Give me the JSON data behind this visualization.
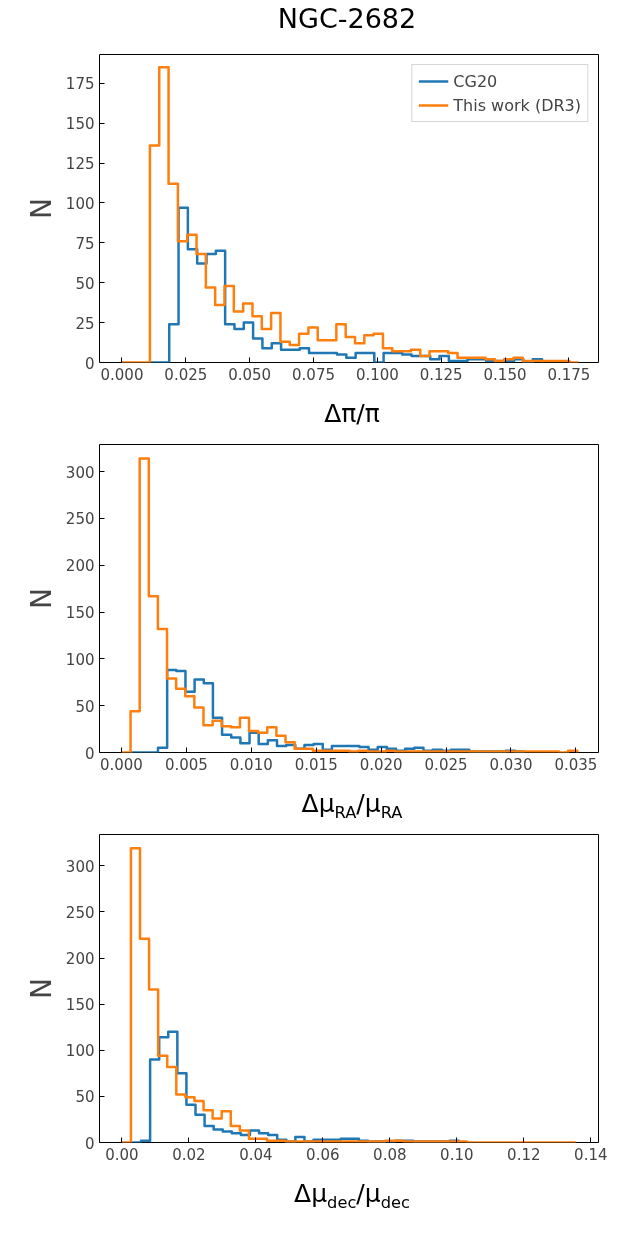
{
  "chart_data": [
    {
      "type": "step",
      "title": "NGC-2682",
      "xlabel": "Δπ/π",
      "ylabel": "N",
      "legend": "top right",
      "grid": false,
      "marker": "none",
      "xlim": [
        -0.0088,
        0.1866
      ],
      "ylim": [
        0,
        193
      ],
      "xticks": [
        {
          "value": 0,
          "label": "0.000"
        },
        {
          "value": 0.025,
          "label": "0.025"
        },
        {
          "value": 0.05,
          "label": "0.050"
        },
        {
          "value": 0.075,
          "label": "0.075"
        },
        {
          "value": 0.1,
          "label": "0.100"
        },
        {
          "value": 0.125,
          "label": "0.125"
        },
        {
          "value": 0.15,
          "label": "0.150"
        },
        {
          "value": 0.175,
          "label": "0.175"
        }
      ],
      "yticks": [
        0,
        25,
        50,
        75,
        100,
        125,
        150,
        175
      ],
      "series": [
        {
          "name": "CG20",
          "color": "#1f77b4",
          "x": [
            0.0112,
            0.01485,
            0.0185,
            0.02215,
            0.0258,
            0.02945,
            0.0331,
            0.03675,
            0.0404,
            0.04405,
            0.0477,
            0.05135,
            0.055,
            0.05865,
            0.0623,
            0.06595,
            0.0696,
            0.07325,
            0.0769,
            0.08055,
            0.0842,
            0.08785,
            0.0915,
            0.09515,
            0.0988,
            0.10245,
            0.1061,
            0.10975,
            0.1134,
            0.11705,
            0.1207,
            0.12435,
            0.128,
            0.13165,
            0.1353,
            0.13895,
            0.1426,
            0.14625,
            0.1499,
            0.15355,
            0.1572,
            0.16085,
            0.1645
          ],
          "values": [
            0,
            0,
            24,
            97,
            71,
            62,
            68,
            70,
            24,
            21,
            25,
            15,
            9,
            12,
            8,
            8,
            9,
            6,
            6,
            6,
            5,
            3,
            6,
            6,
            0,
            6,
            6,
            5,
            4,
            4,
            2,
            4,
            1,
            1,
            2,
            2,
            1,
            1,
            1,
            2,
            0,
            2,
            0
          ]
        },
        {
          "name": "This work (DR3)",
          "color": "#ff7f0e",
          "x": [
            0,
            0.00365,
            0.0073,
            0.01095,
            0.0146,
            0.01825,
            0.0219,
            0.02555,
            0.0292,
            0.03285,
            0.0365,
            0.04015,
            0.0438,
            0.04745,
            0.0511,
            0.05475,
            0.0584,
            0.06205,
            0.0657,
            0.06935,
            0.073,
            0.07665,
            0.0803,
            0.08395,
            0.0876,
            0.09125,
            0.0949,
            0.09855,
            0.1022,
            0.10585,
            0.1095,
            0.11315,
            0.1168,
            0.12045,
            0.1241,
            0.12775,
            0.1314,
            0.13505,
            0.1387,
            0.14235,
            0.146,
            0.14965,
            0.1533,
            0.15695,
            0.1606,
            0.16425,
            0.1679,
            0.17155,
            0.1752,
            0.17885
          ],
          "values": [
            0,
            0,
            0,
            136,
            185,
            112,
            76,
            80,
            68,
            47,
            36,
            48,
            32,
            37,
            29,
            21,
            31,
            13,
            11,
            18,
            22,
            14,
            14,
            24,
            16,
            12,
            17,
            18,
            9,
            7,
            7,
            8,
            4,
            7,
            7,
            6,
            3,
            3,
            3,
            2,
            1,
            2,
            3,
            1,
            1,
            1,
            1,
            1,
            0,
            0
          ]
        }
      ]
    },
    {
      "type": "step",
      "xlabel": "Δμ$_{RA}$/μ$_{RA}$",
      "ylabel": "N",
      "grid": false,
      "marker": "none",
      "xlim": [
        -0.00169,
        0.03674
      ],
      "ylim": [
        0,
        329
      ],
      "xticks": [
        {
          "value": 0,
          "label": "0.000"
        },
        {
          "value": 0.005,
          "label": "0.005"
        },
        {
          "value": 0.01,
          "label": "0.010"
        },
        {
          "value": 0.015,
          "label": "0.015"
        },
        {
          "value": 0.02,
          "label": "0.020"
        },
        {
          "value": 0.025,
          "label": "0.025"
        },
        {
          "value": 0.03,
          "label": "0.030"
        },
        {
          "value": 0.035,
          "label": "0.035"
        }
      ],
      "yticks": [
        0,
        50,
        100,
        150,
        200,
        250,
        300
      ],
      "series": [
        {
          "color": "#1f77b4",
          "x": [
            0.0007,
            0.001405,
            0.00211,
            0.002815,
            0.00352,
            0.004225,
            0.00493,
            0.005635,
            0.00634,
            0.007045,
            0.00775,
            0.008455,
            0.00916,
            0.009865,
            0.01057,
            0.011275,
            0.01198,
            0.012685,
            0.01339,
            0.014095,
            0.0148,
            0.015505,
            0.01621,
            0.016915,
            0.01762,
            0.018325,
            0.01903,
            0.019735,
            0.02044,
            0.021145,
            0.02185,
            0.022555,
            0.02326,
            0.023965,
            0.02467,
            0.025375,
            0.02608,
            0.026785,
            0.02749,
            0.028195,
            0.0289,
            0.029605,
            0.03031,
            0.031015
          ],
          "values": [
            0,
            0,
            0,
            5,
            88,
            87,
            65,
            78,
            74,
            37,
            19,
            16,
            10,
            21,
            9,
            13,
            7,
            8,
            4,
            8,
            9,
            3,
            7,
            7,
            7,
            6,
            3,
            6,
            4,
            2,
            4,
            5,
            2,
            3,
            2,
            3,
            3,
            1,
            1,
            1,
            1,
            2,
            1,
            0
          ]
        },
        {
          "color": "#ff7f0e",
          "x": [
            0,
            0.000702,
            0.001404,
            0.002106,
            0.002808,
            0.00351,
            0.004212,
            0.004914,
            0.005616,
            0.006318,
            0.00702,
            0.007722,
            0.008424,
            0.009126,
            0.009828,
            0.01053,
            0.011232,
            0.011934,
            0.012636,
            0.013338,
            0.01404,
            0.014742,
            0.015444,
            0.016146,
            0.016848,
            0.01755,
            0.018252,
            0.018954,
            0.019656,
            0.020358,
            0.02106,
            0.021762,
            0.022464,
            0.023166,
            0.023868,
            0.02457,
            0.025272,
            0.025974,
            0.026676,
            0.027378,
            0.02808,
            0.028782,
            0.029484,
            0.030186,
            0.030888,
            0.03159,
            0.032292,
            0.032994,
            0.033696,
            0.034398,
            0.0351
          ],
          "values": [
            0,
            44,
            314,
            167,
            132,
            79,
            68,
            60,
            48,
            29,
            34,
            28,
            27,
            37,
            23,
            21,
            27,
            18,
            11,
            4,
            4,
            2,
            2,
            2,
            2,
            1,
            2,
            1,
            1,
            2,
            1,
            1,
            1,
            1,
            1,
            1,
            1,
            1,
            1,
            1,
            1,
            1,
            1,
            1,
            1,
            1,
            1,
            1,
            0,
            2,
            0
          ]
        }
      ]
    },
    {
      "type": "step",
      "xlabel": "Δμ$_{dec}$/μ$_{dec}$",
      "ylabel": "N",
      "grid": false,
      "marker": "none",
      "xlim": [
        -0.00667,
        0.1423
      ],
      "ylim": [
        0,
        334
      ],
      "xticks": [
        {
          "value": 0,
          "label": "0.00"
        },
        {
          "value": 0.02,
          "label": "0.02"
        },
        {
          "value": 0.04,
          "label": "0.04"
        },
        {
          "value": 0.06,
          "label": "0.06"
        },
        {
          "value": 0.08,
          "label": "0.08"
        },
        {
          "value": 0.1,
          "label": "0.10"
        },
        {
          "value": 0.12,
          "label": "0.12"
        },
        {
          "value": 0.14,
          "label": "0.14"
        }
      ],
      "yticks": [
        0,
        50,
        100,
        150,
        200,
        250,
        300
      ],
      "series": [
        {
          "color": "#1f77b4",
          "x": [
            0.00302,
            0.00573,
            0.00844,
            0.01115,
            0.01386,
            0.01657,
            0.01928,
            0.02199,
            0.0247,
            0.02741,
            0.03012,
            0.03283,
            0.03554,
            0.03825,
            0.04096,
            0.04367,
            0.04638,
            0.04909,
            0.0518,
            0.05451,
            0.05722,
            0.05993,
            0.06264,
            0.06535,
            0.06806,
            0.07077,
            0.07348,
            0.07619,
            0.0789,
            0.08161,
            0.08432,
            0.08703,
            0.08974,
            0.09245,
            0.09516,
            0.09787,
            0.10058
          ],
          "values": [
            0,
            2,
            90,
            114,
            120,
            75,
            41,
            30,
            18,
            14,
            12,
            10,
            8,
            13,
            10,
            8,
            3,
            1,
            6,
            1,
            3,
            3,
            3,
            4,
            4,
            2,
            1,
            1,
            1,
            2,
            2,
            1,
            1,
            1,
            1,
            2,
            0
          ]
        },
        {
          "color": "#ff7f0e",
          "x": [
            0,
            0.00271,
            0.00542,
            0.00813,
            0.01084,
            0.01355,
            0.01626,
            0.01897,
            0.02168,
            0.02439,
            0.0271,
            0.02981,
            0.03252,
            0.03523,
            0.03794,
            0.04065,
            0.04336,
            0.04607,
            0.04878,
            0.05149,
            0.0542,
            0.05691,
            0.05962,
            0.06233,
            0.06504,
            0.06775,
            0.07046,
            0.07317,
            0.07588,
            0.07859,
            0.0813,
            0.08401,
            0.08672,
            0.08943,
            0.09214,
            0.09485,
            0.09756,
            0.10027,
            0.10298,
            0.10569,
            0.1084,
            0.11111,
            0.11382,
            0.11653,
            0.11924,
            0.12195,
            0.12466,
            0.12737,
            0.13008,
            0.13279,
            0.1355
          ],
          "values": [
            0,
            319,
            221,
            166,
            94,
            82,
            52,
            49,
            45,
            35,
            26,
            34,
            18,
            13,
            4,
            4,
            2,
            2,
            1,
            1,
            1,
            1,
            1,
            1,
            1,
            1,
            1,
            1,
            1,
            2,
            2,
            1,
            1,
            1,
            1,
            1,
            1,
            1,
            0,
            0,
            0,
            0,
            0,
            0,
            0,
            0,
            0,
            0,
            0,
            0,
            0
          ]
        }
      ]
    }
  ]
}
